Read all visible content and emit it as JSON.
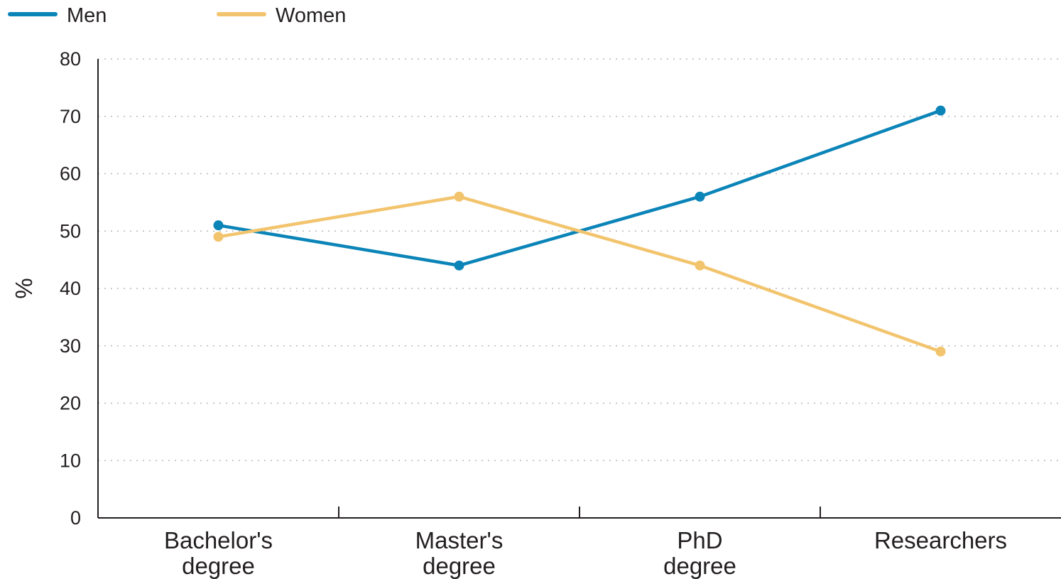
{
  "chart_data": {
    "type": "line",
    "categories": [
      [
        "Bachelor's",
        "degree"
      ],
      [
        "Master's",
        "degree"
      ],
      [
        "PhD",
        "degree"
      ],
      [
        "Researchers"
      ]
    ],
    "series": [
      {
        "name": "Men",
        "color": "#0b84b8",
        "values": [
          51,
          44,
          56,
          71
        ]
      },
      {
        "name": "Women",
        "color": "#f2c46d",
        "values": [
          49,
          56,
          44,
          29
        ]
      }
    ],
    "ylabel": "%",
    "xlabel": "",
    "ylim": [
      0,
      80
    ],
    "yticks": [
      "0",
      "10",
      "20",
      "30",
      "40",
      "50",
      "60",
      "70",
      "80"
    ],
    "grid": "dotted horizontal",
    "legend": "top-left"
  }
}
